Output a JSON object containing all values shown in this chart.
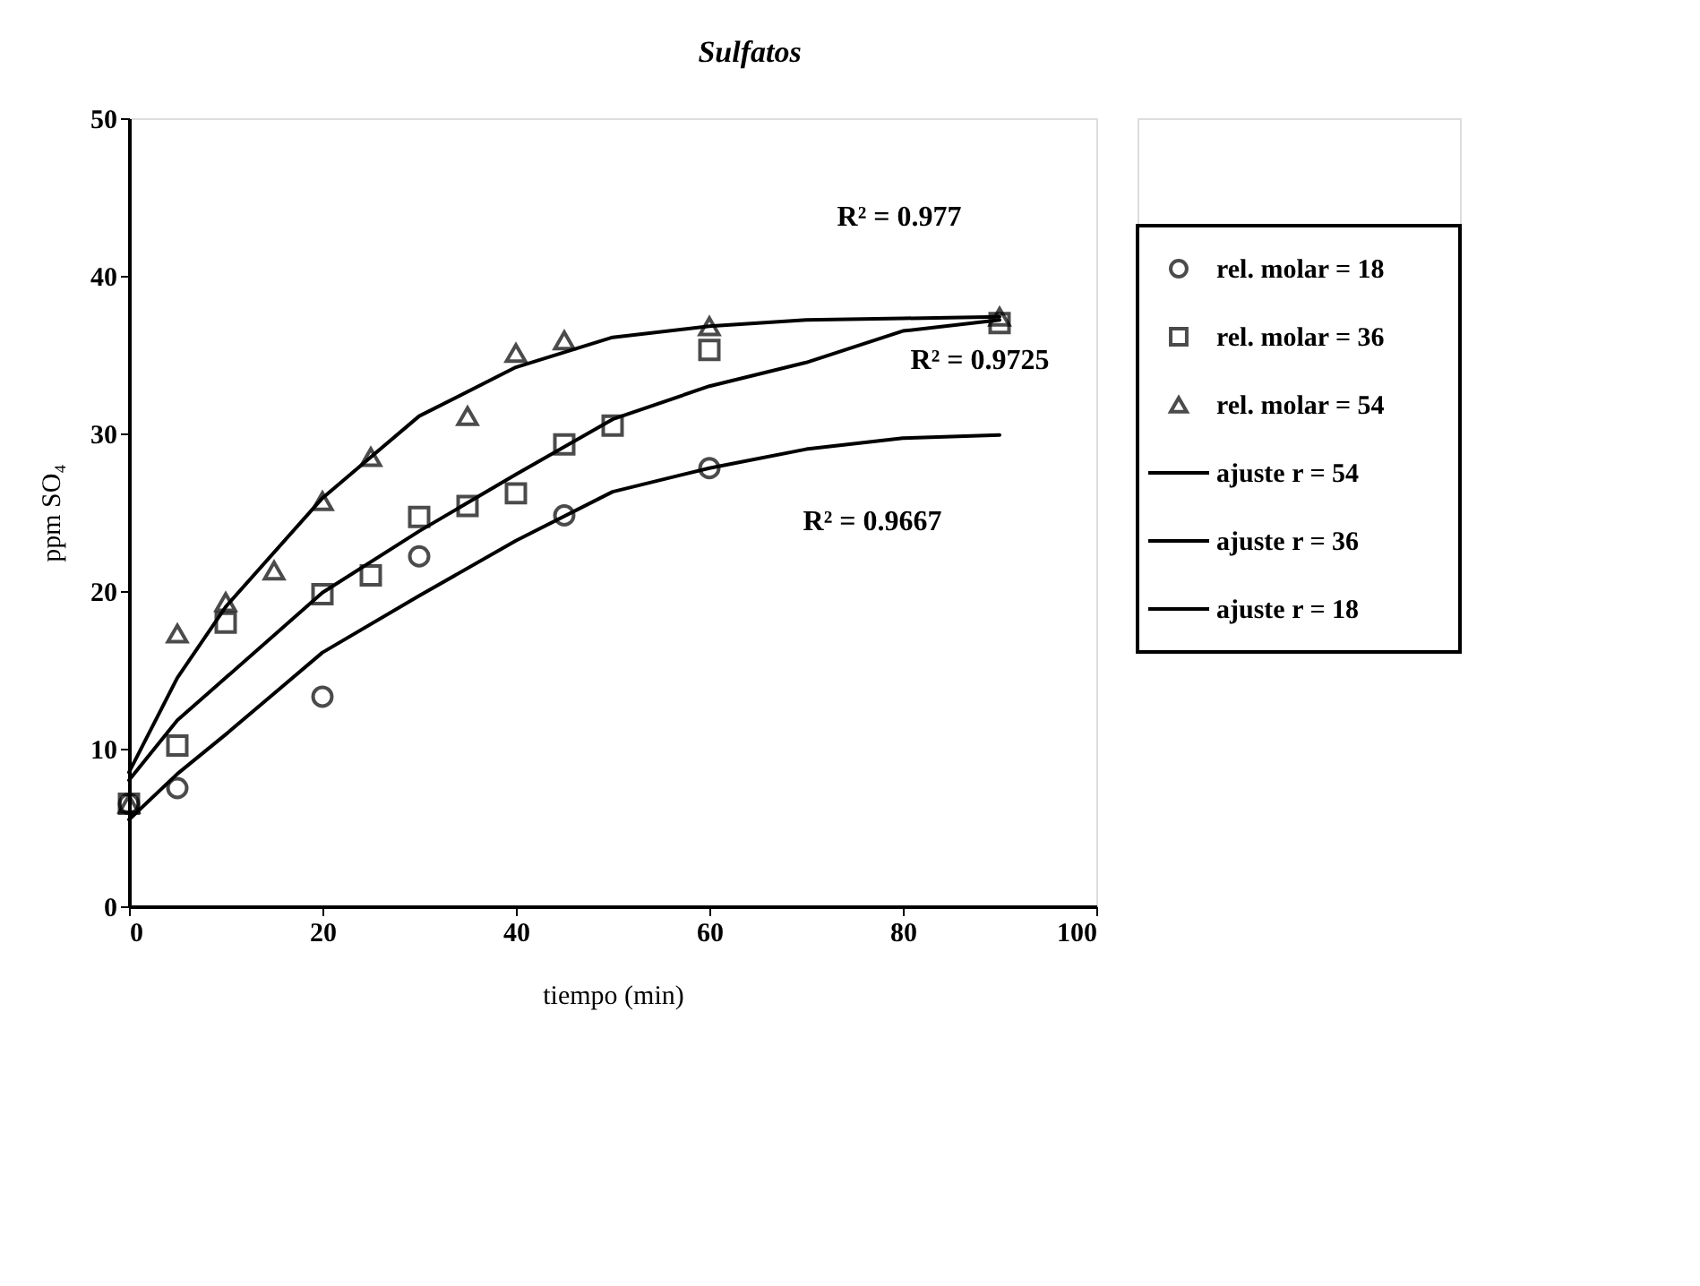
{
  "chart_data": {
    "type": "scatter",
    "title": "Sulfatos",
    "xlabel": "tiempo (min)",
    "ylabel": "ppm SO₄",
    "xlim": [
      0,
      100
    ],
    "xticks": [
      0,
      20,
      40,
      60,
      80,
      100
    ],
    "ylim": [
      0,
      50
    ],
    "yticks": [
      0,
      10,
      20,
      30,
      40,
      50
    ],
    "grid": false,
    "legend": "right",
    "series": [
      {
        "name": "rel. molar = 18",
        "marker": "circle",
        "color": "#000000",
        "x": [
          0,
          5,
          20,
          30,
          45,
          60
        ],
        "values": [
          6.5,
          7.5,
          13.3,
          22.2,
          24.8,
          27.8
        ]
      },
      {
        "name": "rel. molar = 36",
        "marker": "square",
        "color": "#000000",
        "x": [
          0,
          5,
          10,
          20,
          25,
          30,
          35,
          40,
          45,
          50,
          60,
          90
        ],
        "values": [
          6.5,
          10.2,
          18.0,
          19.8,
          21.0,
          24.7,
          25.4,
          26.2,
          29.3,
          30.5,
          35.3,
          37.0
        ]
      },
      {
        "name": "rel. molar = 54",
        "marker": "triangle",
        "color": "#000000",
        "x": [
          0,
          5,
          10,
          15,
          20,
          25,
          35,
          40,
          45,
          60,
          90
        ],
        "values": [
          6.5,
          17.3,
          19.3,
          21.3,
          25.7,
          28.5,
          31.1,
          35.1,
          35.9,
          36.8,
          37.4
        ]
      },
      {
        "name": "ajuste r = 54",
        "type": "line",
        "marker": "none",
        "line_style": "solid",
        "color": "#000000",
        "x": [
          0,
          5,
          10,
          20,
          30,
          40,
          50,
          60,
          70,
          80,
          90
        ],
        "values": [
          8.5,
          14.5,
          19.0,
          25.9,
          31.1,
          34.2,
          36.1,
          36.8,
          37.2,
          37.3,
          37.4
        ]
      },
      {
        "name": "ajuste r = 36",
        "type": "line",
        "marker": "none",
        "line_style": "solid",
        "color": "#000000",
        "x": [
          0,
          5,
          10,
          20,
          30,
          40,
          50,
          60,
          70,
          80,
          90
        ],
        "values": [
          8.0,
          11.8,
          14.5,
          19.9,
          23.8,
          27.4,
          30.9,
          33.0,
          34.5,
          36.5,
          37.2
        ]
      },
      {
        "name": "ajuste r = 18",
        "type": "line",
        "marker": "none",
        "line_style": "solid",
        "color": "#000000",
        "x": [
          0,
          5,
          10,
          20,
          30,
          40,
          50,
          60,
          70,
          80,
          90
        ],
        "values": [
          5.5,
          8.4,
          10.9,
          16.1,
          19.7,
          23.2,
          26.3,
          27.8,
          29.0,
          29.7,
          29.9
        ]
      }
    ],
    "annotations": [
      "R² = 0.977",
      "R² = 0.9725",
      "R² = 0.9667"
    ]
  }
}
